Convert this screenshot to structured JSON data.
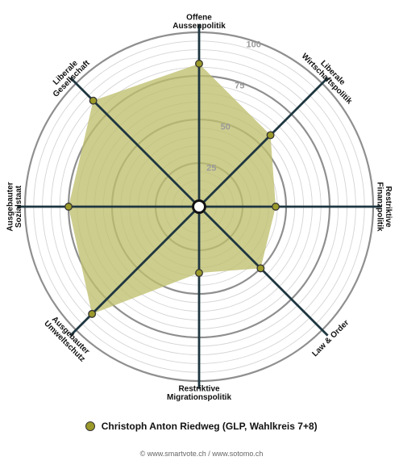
{
  "chart_data": {
    "type": "radar",
    "axes": [
      {
        "label": [
          "Offene",
          "Aussenpolitik"
        ],
        "value": 82
      },
      {
        "label": [
          "Liberale",
          "Wirtschaftspolitik"
        ],
        "value": 58
      },
      {
        "label": [
          "Restriktive",
          "Finanzpolitik"
        ],
        "value": 44
      },
      {
        "label": [
          "Law & Order"
        ],
        "value": 50
      },
      {
        "label": [
          "Restriktive",
          "Migrationspolitik"
        ],
        "value": 38
      },
      {
        "label": [
          "Ausgebauter",
          "Umweltschutz"
        ],
        "value": 87
      },
      {
        "label": [
          "Ausgebauter",
          "Sozialstaat"
        ],
        "value": 75
      },
      {
        "label": [
          "Liberale",
          "Gesellschaft"
        ],
        "value": 86
      }
    ],
    "range": [
      0,
      100
    ],
    "ticks": [
      25,
      50,
      75,
      100
    ],
    "series_name": "Christoph Anton Riedweg (GLP, Wahlkreis 7+8)",
    "fill_color": "#bfbf6e",
    "point_color": "#9c9a2a",
    "spoke_color": "#1e3640"
  },
  "legend": {
    "label": "Christoph Anton Riedweg (GLP, Wahlkreis 7+8)"
  },
  "footer": "© www.smartvote.ch / www.sotomo.ch"
}
